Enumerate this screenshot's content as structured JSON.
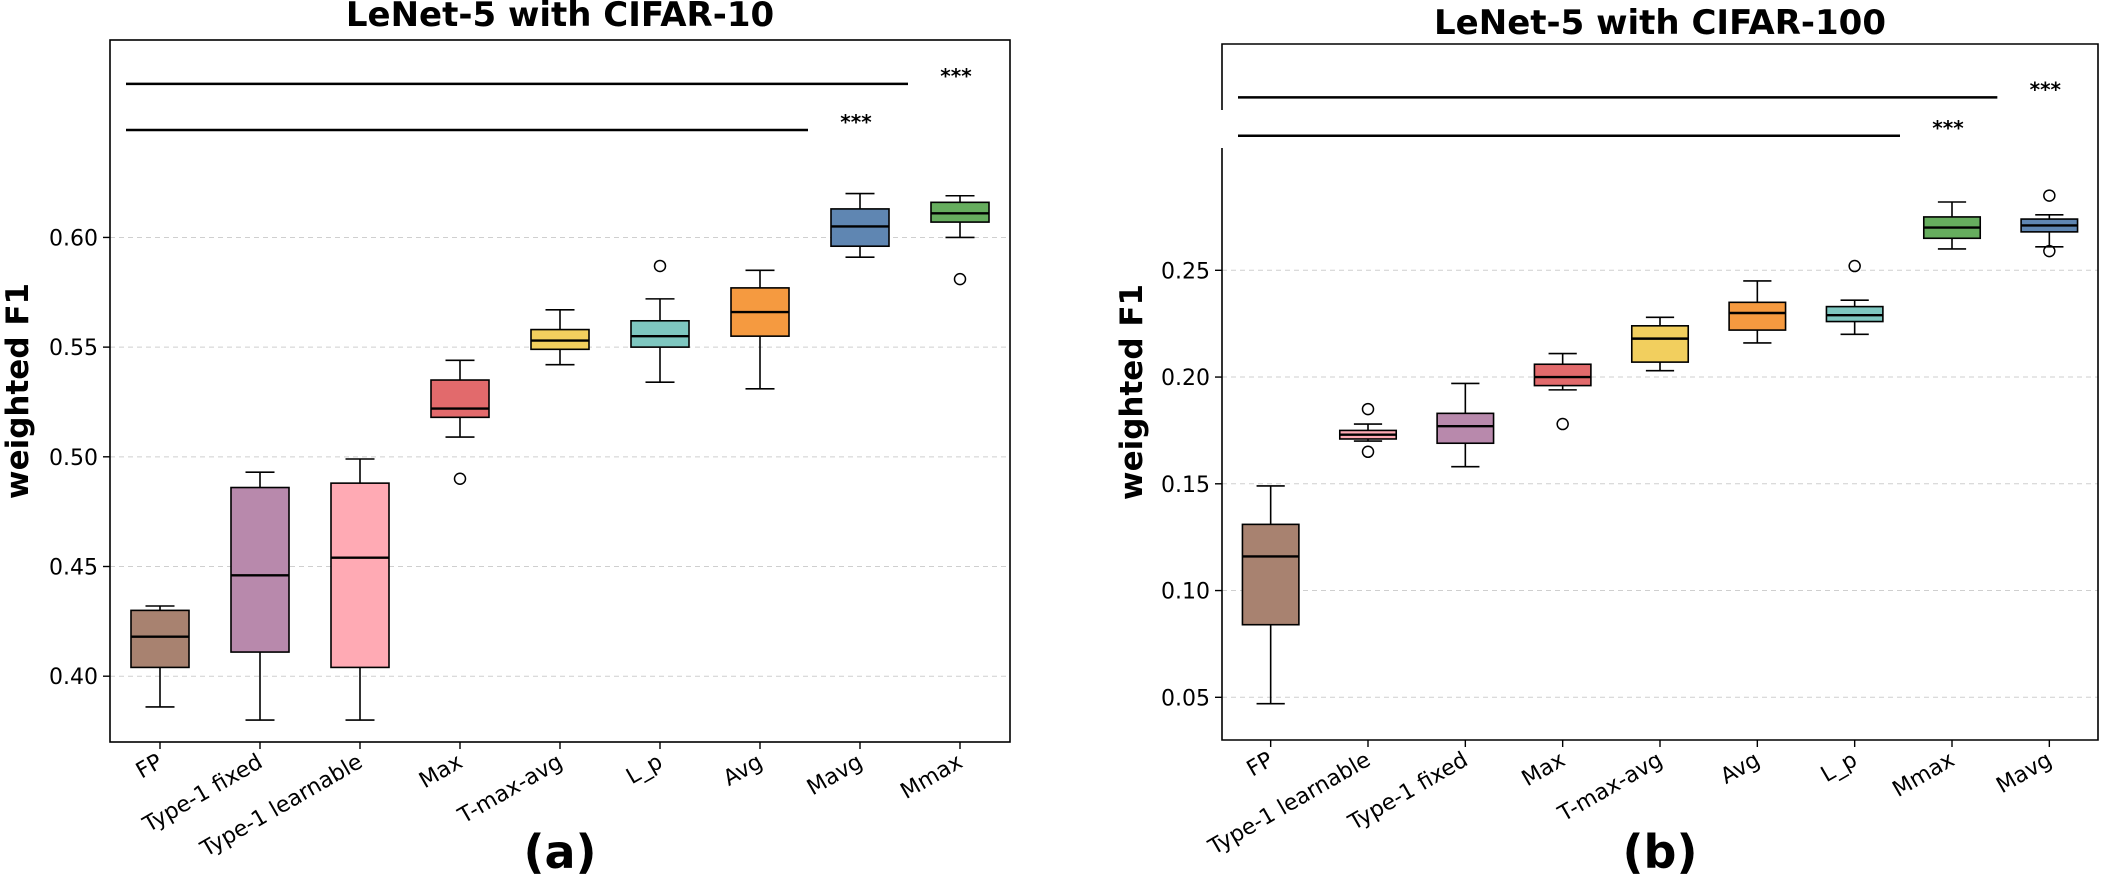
{
  "chart_data": [
    {
      "type": "boxplot",
      "title": "LeNet-5 with CIFAR-10",
      "ylabel": "weighted F1",
      "xlabel": "",
      "panel_label": "(a)",
      "ylim": [
        0.37,
        0.69
      ],
      "yticks": [
        0.4,
        0.45,
        0.5,
        0.55,
        0.6
      ],
      "ytick_labels": [
        "0.40",
        "0.45",
        "0.50",
        "0.55",
        "0.60"
      ],
      "grid": "y-dashed",
      "categories": [
        "FP",
        "Type-1 fixed",
        "Type-1 learnable",
        "Max",
        "T-max-avg",
        "L_p",
        "Avg",
        "Mavg",
        "Mmax"
      ],
      "colors": [
        "#a88270",
        "#b889ac",
        "#ffaab4",
        "#e26a6c",
        "#f2cf5e",
        "#7ec7c0",
        "#f59a40",
        "#5f86b2",
        "#66ad5e"
      ],
      "boxes": [
        {
          "whislo": 0.386,
          "q1": 0.404,
          "med": 0.418,
          "q3": 0.43,
          "whishi": 0.432,
          "fliers": []
        },
        {
          "whislo": 0.38,
          "q1": 0.411,
          "med": 0.446,
          "q3": 0.486,
          "whishi": 0.493,
          "fliers": []
        },
        {
          "whislo": 0.38,
          "q1": 0.404,
          "med": 0.454,
          "q3": 0.488,
          "whishi": 0.499,
          "fliers": []
        },
        {
          "whislo": 0.509,
          "q1": 0.518,
          "med": 0.522,
          "q3": 0.535,
          "whishi": 0.544,
          "fliers": [
            0.49
          ]
        },
        {
          "whislo": 0.542,
          "q1": 0.549,
          "med": 0.553,
          "q3": 0.558,
          "whishi": 0.567,
          "fliers": []
        },
        {
          "whislo": 0.534,
          "q1": 0.55,
          "med": 0.555,
          "q3": 0.562,
          "whishi": 0.572,
          "fliers": [
            0.587
          ]
        },
        {
          "whislo": 0.531,
          "q1": 0.555,
          "med": 0.566,
          "q3": 0.577,
          "whishi": 0.585,
          "fliers": []
        },
        {
          "whislo": 0.591,
          "q1": 0.596,
          "med": 0.605,
          "q3": 0.613,
          "whishi": 0.62,
          "fliers": []
        },
        {
          "whislo": 0.6,
          "q1": 0.607,
          "med": 0.611,
          "q3": 0.616,
          "whishi": 0.619,
          "fliers": [
            0.581
          ]
        }
      ],
      "significance": [
        {
          "from": "FP",
          "to": "Mmax",
          "y": 0.67,
          "label": "***"
        },
        {
          "from": "FP",
          "to": "Mavg",
          "y": 0.649,
          "label": "***"
        }
      ]
    },
    {
      "type": "boxplot",
      "title": "LeNet-5 with CIFAR-100",
      "ylabel": "weighted F1",
      "xlabel": "",
      "panel_label": "(b)",
      "ylim": [
        0.03,
        0.356
      ],
      "yticks": [
        0.05,
        0.1,
        0.15,
        0.2,
        0.25
      ],
      "ytick_labels": [
        "0.05",
        "0.10",
        "0.15",
        "0.20",
        "0.25"
      ],
      "grid": "y-dashed",
      "categories": [
        "FP",
        "Type-1 learnable",
        "Type-1 fixed",
        "Max",
        "T-max-avg",
        "Avg",
        "L_p",
        "Mmax",
        "Mavg"
      ],
      "colors": [
        "#a88270",
        "#ffaab4",
        "#b889ac",
        "#e26a6c",
        "#f2cf5e",
        "#f59a40",
        "#7ec7c0",
        "#66ad5e",
        "#5f86b2"
      ],
      "boxes": [
        {
          "whislo": 0.047,
          "q1": 0.084,
          "med": 0.116,
          "q3": 0.131,
          "whishi": 0.149,
          "fliers": []
        },
        {
          "whislo": 0.17,
          "q1": 0.171,
          "med": 0.173,
          "q3": 0.175,
          "whishi": 0.178,
          "fliers": [
            0.185,
            0.165
          ]
        },
        {
          "whislo": 0.158,
          "q1": 0.169,
          "med": 0.177,
          "q3": 0.183,
          "whishi": 0.197,
          "fliers": []
        },
        {
          "whislo": 0.194,
          "q1": 0.196,
          "med": 0.2,
          "q3": 0.206,
          "whishi": 0.211,
          "fliers": [
            0.178
          ]
        },
        {
          "whislo": 0.203,
          "q1": 0.207,
          "med": 0.218,
          "q3": 0.224,
          "whishi": 0.228,
          "fliers": []
        },
        {
          "whislo": 0.216,
          "q1": 0.222,
          "med": 0.23,
          "q3": 0.235,
          "whishi": 0.245,
          "fliers": []
        },
        {
          "whislo": 0.22,
          "q1": 0.226,
          "med": 0.229,
          "q3": 0.233,
          "whishi": 0.236,
          "fliers": [
            0.252
          ]
        },
        {
          "whislo": 0.26,
          "q1": 0.265,
          "med": 0.27,
          "q3": 0.275,
          "whishi": 0.282,
          "fliers": []
        },
        {
          "whislo": 0.261,
          "q1": 0.268,
          "med": 0.271,
          "q3": 0.274,
          "whishi": 0.276,
          "fliers": [
            0.285,
            0.259
          ]
        }
      ],
      "significance": [
        {
          "from": "FP",
          "to": "Mavg",
          "y": 0.331,
          "label": "***"
        },
        {
          "from": "FP",
          "to": "Mmax",
          "y": 0.313,
          "label": "***"
        }
      ]
    }
  ]
}
